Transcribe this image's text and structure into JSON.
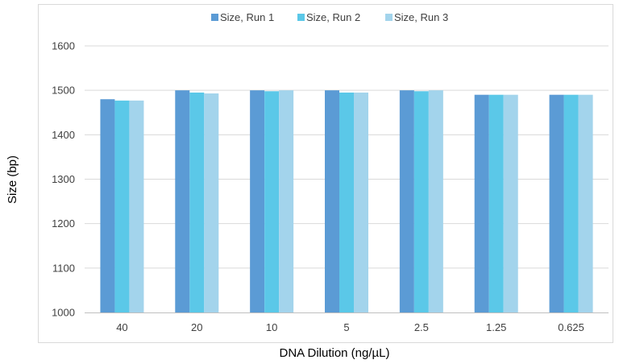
{
  "chart_data": {
    "type": "bar",
    "title": "",
    "xlabel": "DNA Dilution (ng/µL)",
    "ylabel": "Size (bp)",
    "categories": [
      "40",
      "20",
      "10",
      "5",
      "2.5",
      "1.25",
      "0.625"
    ],
    "series": [
      {
        "name": "Size, Run 1",
        "color": "#5b9bd5",
        "values": [
          1480,
          1500,
          1500,
          1500,
          1500,
          1490,
          1490
        ]
      },
      {
        "name": "Size, Run 2",
        "color": "#5bc8e8",
        "values": [
          1477,
          1495,
          1498,
          1495,
          1498,
          1490,
          1490
        ]
      },
      {
        "name": "Size, Run 3",
        "color": "#a3d4ec",
        "values": [
          1477,
          1493,
          1500,
          1495,
          1500,
          1490,
          1490
        ]
      }
    ],
    "ylim": [
      1000,
      1600
    ],
    "yticks": [
      "1000",
      "1100",
      "1200",
      "1300",
      "1400",
      "1500",
      "1600"
    ],
    "grid": true,
    "legend_position": "top"
  }
}
